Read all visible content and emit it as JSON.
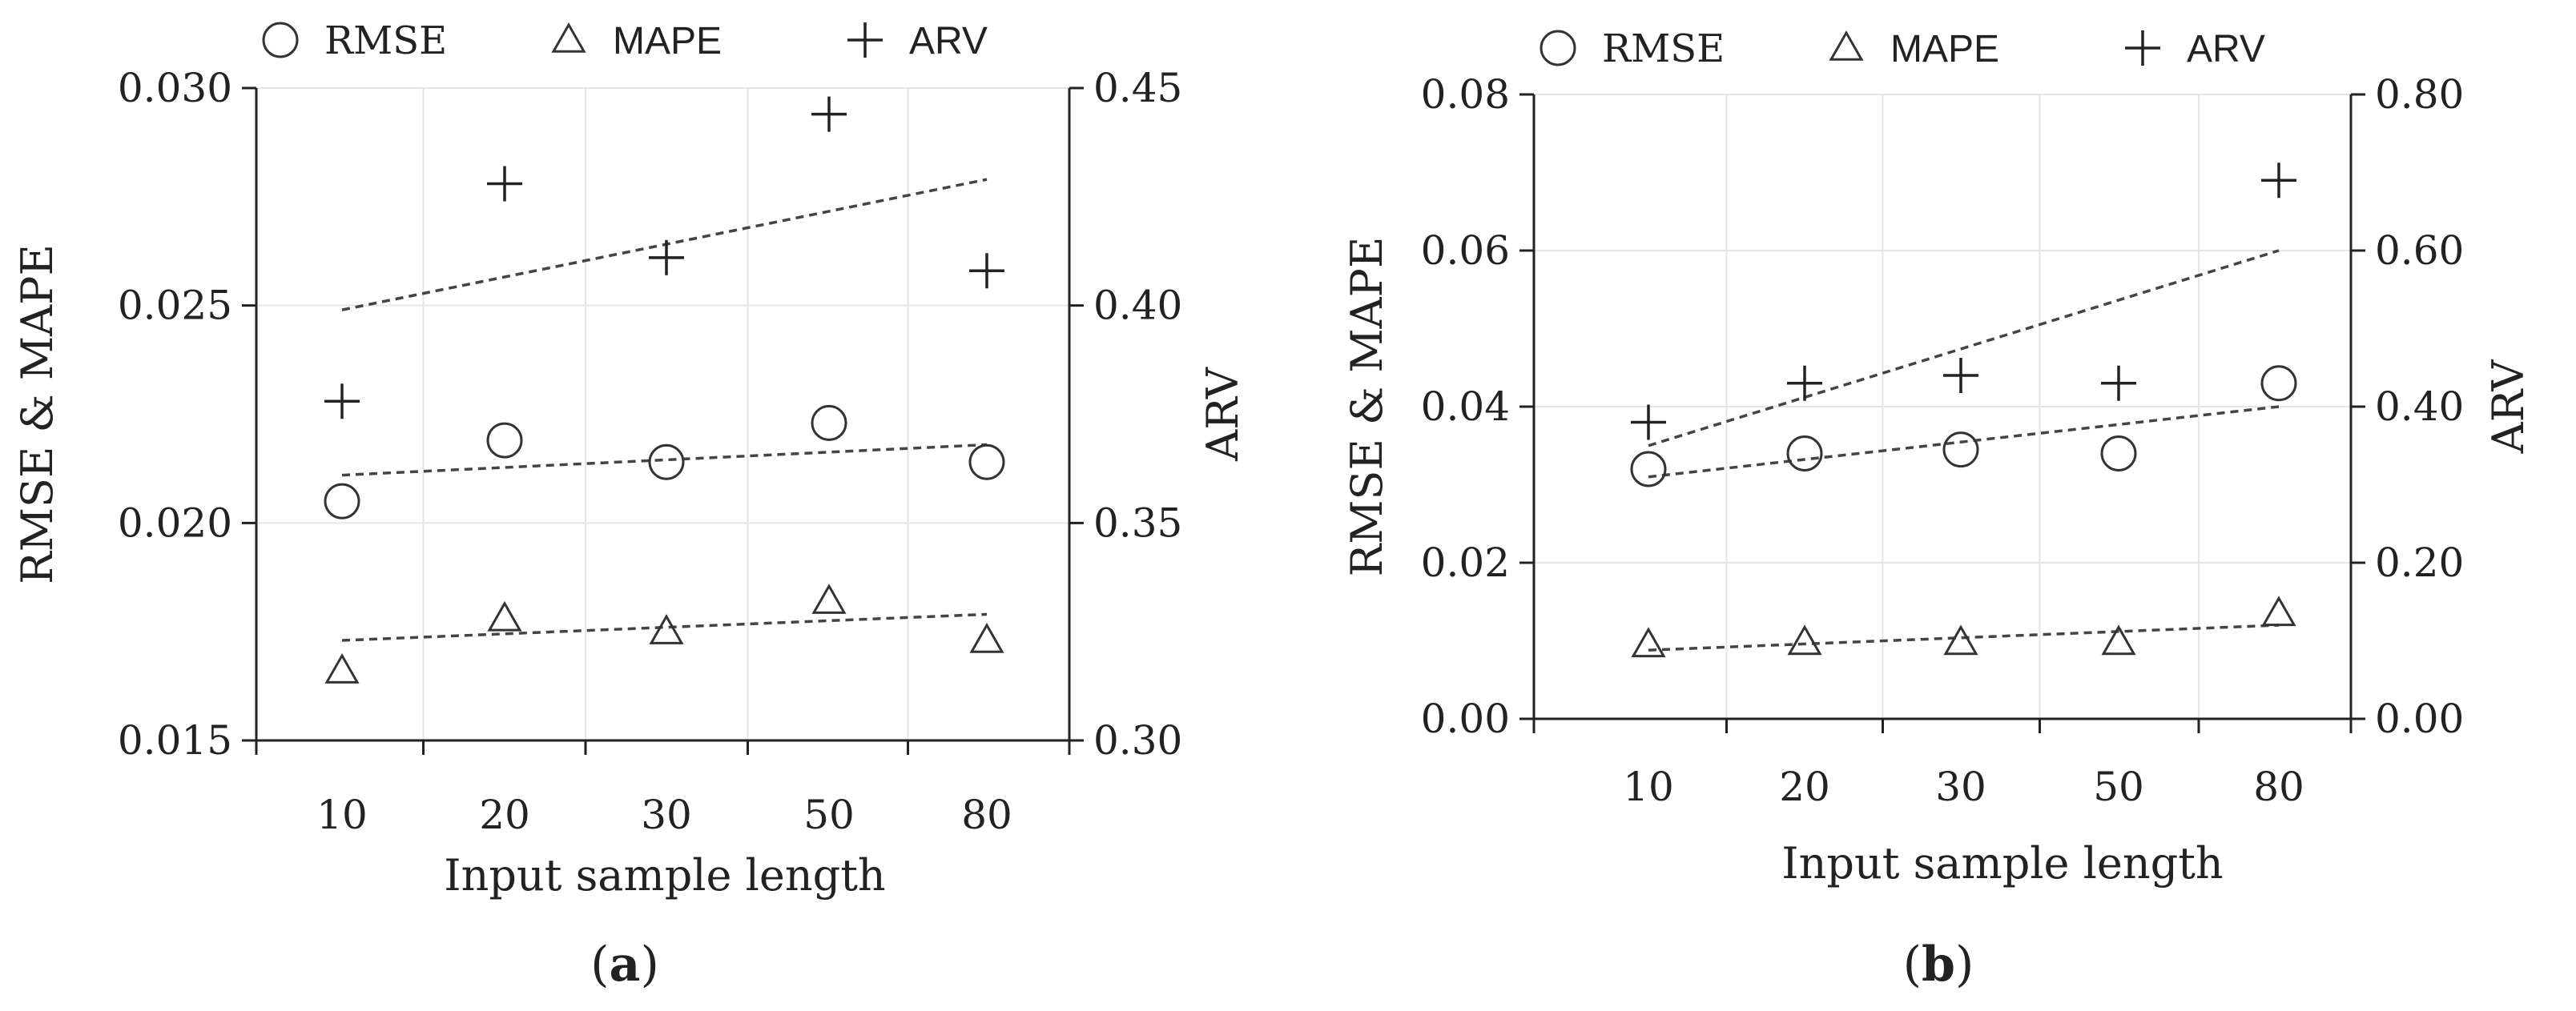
{
  "chart_data": [
    {
      "type": "scatter",
      "panel_label": "a",
      "xlabel": "Input sample length",
      "ylabel_left": "RMSE & MAPE",
      "ylabel_right": "ARV",
      "categories": [
        "10",
        "20",
        "30",
        "50",
        "80"
      ],
      "left_ylim": [
        0.015,
        0.03
      ],
      "left_ticks": [
        "0.015",
        "0.020",
        "0.025",
        "0.030"
      ],
      "right_ylim": [
        0.3,
        0.45
      ],
      "right_ticks": [
        "0.30",
        "0.35",
        "0.40",
        "0.45"
      ],
      "grid": true,
      "legend": [
        "RMSE",
        "MAPE",
        "ARV"
      ],
      "legend_position": "top",
      "series": [
        {
          "name": "RMSE",
          "marker": "circle",
          "axis": "left",
          "values": [
            0.0205,
            0.0219,
            0.0214,
            0.0223,
            0.0214
          ],
          "trend": [
            0.0211,
            0.0218
          ]
        },
        {
          "name": "MAPE",
          "marker": "triangle",
          "axis": "left",
          "values": [
            0.0166,
            0.0178,
            0.0175,
            0.0182,
            0.0173
          ],
          "trend": [
            0.0173,
            0.0179
          ]
        },
        {
          "name": "ARV",
          "marker": "plus",
          "axis": "right",
          "values": [
            0.378,
            0.428,
            0.411,
            0.444,
            0.408
          ],
          "trend": [
            0.399,
            0.429
          ]
        }
      ]
    },
    {
      "type": "scatter",
      "panel_label": "b",
      "xlabel": "Input sample length",
      "ylabel_left": "RMSE & MAPE",
      "ylabel_right": "ARV",
      "categories": [
        "10",
        "20",
        "30",
        "50",
        "80"
      ],
      "left_ylim": [
        0.0,
        0.08
      ],
      "left_ticks": [
        "0.00",
        "0.02",
        "0.04",
        "0.06",
        "0.08"
      ],
      "right_ylim": [
        0.0,
        0.8
      ],
      "right_ticks": [
        "0.00",
        "0.20",
        "0.40",
        "0.60",
        "0.80"
      ],
      "grid": true,
      "legend": [
        "RMSE",
        "MAPE",
        "ARV"
      ],
      "legend_position": "top",
      "series": [
        {
          "name": "RMSE",
          "marker": "circle",
          "axis": "left",
          "values": [
            0.032,
            0.034,
            0.0345,
            0.034,
            0.043
          ],
          "trend": [
            0.031,
            0.04
          ]
        },
        {
          "name": "MAPE",
          "marker": "triangle",
          "axis": "left",
          "values": [
            0.0095,
            0.0098,
            0.0098,
            0.0098,
            0.0135
          ],
          "trend": [
            0.0088,
            0.012
          ]
        },
        {
          "name": "ARV",
          "marker": "plus",
          "axis": "right",
          "values": [
            0.38,
            0.43,
            0.44,
            0.43,
            0.69
          ],
          "trend": [
            0.35,
            0.6
          ]
        }
      ]
    }
  ]
}
